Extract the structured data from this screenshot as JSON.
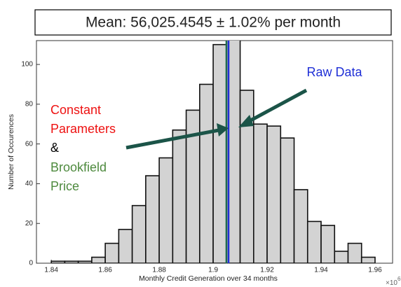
{
  "chart_data": {
    "type": "histogram",
    "title": "Mean: 56,025.4545 ± 1.02% per month",
    "x_label": "Monthly Credit Generation over 34 months",
    "y_label": "Number of Occurences",
    "x_multiplier": {
      "base": "×10",
      "exponent": "6"
    },
    "bins": [
      1.84,
      1.845,
      1.85,
      1.855,
      1.86,
      1.865,
      1.87,
      1.875,
      1.88,
      1.885,
      1.89,
      1.895,
      1.9,
      1.905,
      1.91,
      1.915,
      1.92,
      1.925,
      1.93,
      1.935,
      1.94,
      1.945,
      1.95,
      1.955,
      1.96
    ],
    "values": [
      1,
      1,
      1,
      3,
      10,
      17,
      29,
      44,
      53,
      67,
      77,
      90,
      110,
      118,
      87,
      70,
      69,
      63,
      37,
      21,
      19,
      6,
      10,
      3
    ],
    "color": "#d3d3d3",
    "xlim": [
      1.8345,
      1.9665
    ],
    "ylim": [
      0,
      112
    ],
    "xticks": [
      1.84,
      1.86,
      1.88,
      1.9,
      1.92,
      1.94,
      1.96
    ],
    "yticks": [
      0,
      20,
      40,
      60,
      80,
      100
    ],
    "vlines": [
      {
        "value": 1.9049,
        "color": "#1e6b4f"
      },
      {
        "value": 1.9057,
        "color": "#1f2fd6"
      }
    ],
    "annotations": [
      {
        "text": "Raw Data",
        "color": "#1f2fd6"
      },
      {
        "text": "Constant",
        "color": "#ee1111"
      },
      {
        "text": "Parameters",
        "color": "#ee1111"
      },
      {
        "text": "&",
        "color": "#000000"
      },
      {
        "text": "Brookfield",
        "color": "#4e8a3e"
      },
      {
        "text": "Price",
        "color": "#4e8a3e"
      }
    ]
  }
}
